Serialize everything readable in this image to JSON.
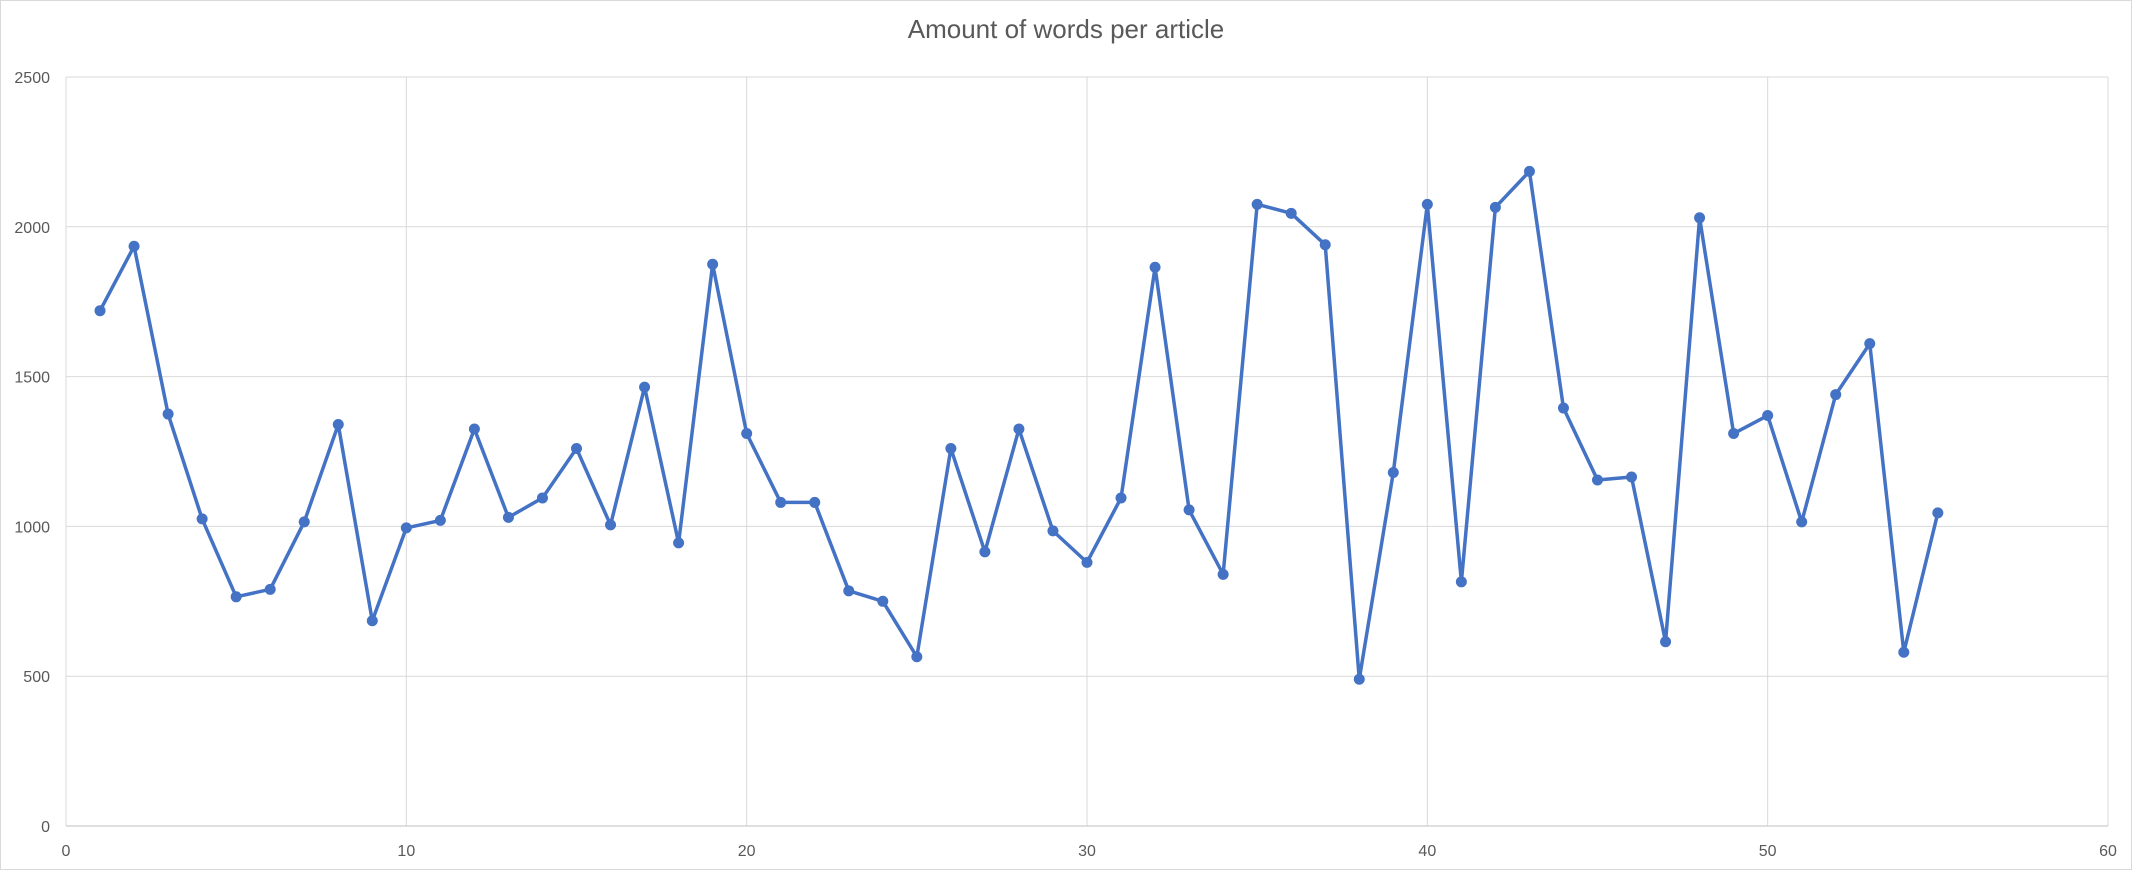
{
  "chart_data": {
    "type": "scatter",
    "title": "Amount of words per article",
    "xlabel": "",
    "ylabel": "",
    "xlim": [
      0,
      60
    ],
    "ylim": [
      0,
      2500
    ],
    "x_ticks": [
      "0",
      "10",
      "20",
      "30",
      "40",
      "50",
      "60"
    ],
    "y_ticks": [
      "0",
      "500",
      "1000",
      "1500",
      "2000",
      "2500"
    ],
    "grid": true,
    "legend": "none",
    "color": "#4472C4",
    "series": [
      {
        "x": [
          1,
          2,
          3,
          4,
          5,
          6,
          7,
          8,
          9,
          10,
          11,
          12,
          13,
          14,
          15,
          16,
          17,
          18,
          19,
          20,
          21,
          22,
          23,
          24,
          25,
          26,
          27,
          28,
          29,
          30,
          31,
          32,
          33,
          34,
          35,
          36,
          37,
          38,
          39,
          40,
          41,
          42,
          43,
          44,
          45,
          46,
          47,
          48,
          49,
          50,
          51,
          52,
          53,
          54,
          55
        ],
        "y": [
          1720,
          1935,
          1375,
          1025,
          765,
          790,
          1015,
          1340,
          685,
          995,
          1020,
          1325,
          1030,
          1095,
          1260,
          1005,
          1465,
          945,
          1875,
          1310,
          1080,
          1080,
          785,
          750,
          565,
          1260,
          915,
          1325,
          985,
          880,
          1095,
          1865,
          1055,
          840,
          2075,
          2045,
          1940,
          490,
          1180,
          2075,
          815,
          2065,
          2185,
          1395,
          1155,
          1165,
          615,
          2030,
          1310,
          1370,
          1015,
          1440,
          1610,
          580,
          1045
        ]
      }
    ]
  }
}
